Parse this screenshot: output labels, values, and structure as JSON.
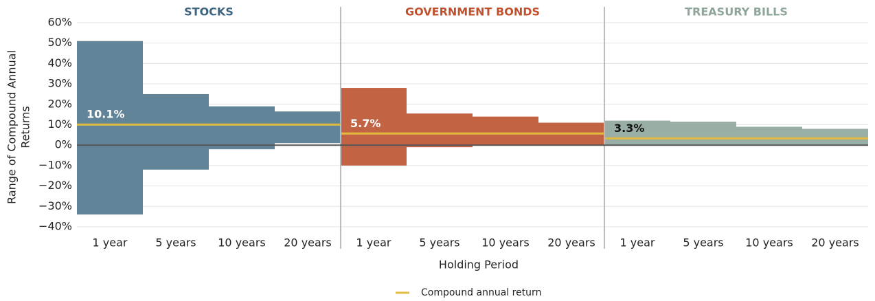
{
  "chart_data": {
    "type": "floating-bar",
    "ylim": [
      -40,
      60
    ],
    "yticks": [
      {
        "value": -40,
        "label": "−40%"
      },
      {
        "value": -30,
        "label": "−30%"
      },
      {
        "value": -20,
        "label": "−20%"
      },
      {
        "value": -10,
        "label": "−10%"
      },
      {
        "value": 0,
        "label": "0%"
      },
      {
        "value": 10,
        "label": "10%"
      },
      {
        "value": 20,
        "label": "20%"
      },
      {
        "value": 30,
        "label": "30%"
      },
      {
        "value": 40,
        "label": "40%"
      },
      {
        "value": 50,
        "label": "50%"
      },
      {
        "value": 60,
        "label": "60%"
      }
    ],
    "grid": true,
    "y_label": [
      "Range of Compound Annual",
      "Returns"
    ],
    "x_label": "Holding Period",
    "legend": {
      "name": "Compound annual return",
      "color": "#e2bb3f"
    },
    "panels": [
      {
        "title": "STOCKS",
        "title_color": "#3e6580",
        "color": "#5a7d93",
        "categories": [
          "1 year",
          "5 years",
          "10 years",
          "20 years"
        ],
        "low": [
          -34,
          -12,
          -2,
          1
        ],
        "high": [
          51,
          25,
          19,
          16.5
        ],
        "average": 10.1,
        "average_label": "10.1%",
        "label_color": "#ffffff"
      },
      {
        "title": "GOVERNMENT BONDS",
        "title_color": "#c0512d",
        "color": "#bf5c3a",
        "categories": [
          "1 year",
          "5 years",
          "10 years",
          "20 years"
        ],
        "low": [
          -10,
          -1,
          0,
          0
        ],
        "high": [
          28,
          15.5,
          14,
          11
        ],
        "average": 5.7,
        "average_label": "5.7%",
        "label_color": "#ffffff"
      },
      {
        "title": "TREASURY BILLS",
        "title_color": "#8ea598",
        "color": "#94aaa0",
        "categories": [
          "1 year",
          "5 years",
          "10 years",
          "20 years"
        ],
        "low": [
          0,
          0,
          0,
          0
        ],
        "high": [
          12,
          11.5,
          9,
          8
        ],
        "average": 3.3,
        "average_label": "3.3%",
        "label_color": "#111111"
      }
    ]
  }
}
